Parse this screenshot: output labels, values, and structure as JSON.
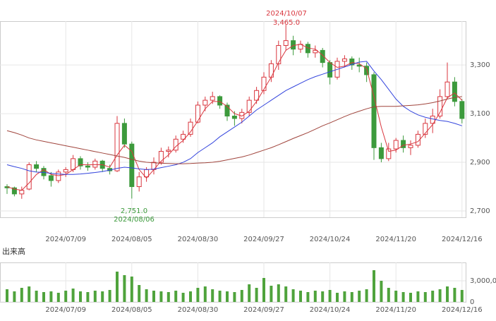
{
  "chart_data": {
    "type": "candlestick",
    "categories": [
      null,
      null,
      null,
      null,
      null,
      null,
      null,
      null,
      "2024/07/09",
      null,
      null,
      null,
      null,
      null,
      null,
      null,
      null,
      "2024/08/05",
      null,
      null,
      null,
      null,
      null,
      null,
      null,
      null,
      "2024/08/30",
      null,
      null,
      null,
      null,
      null,
      null,
      null,
      null,
      "2024/09/27",
      null,
      null,
      null,
      null,
      null,
      null,
      null,
      null,
      "2024/10/24",
      null,
      null,
      null,
      null,
      null,
      null,
      null,
      null,
      "2024/11/20",
      null,
      null,
      null,
      null,
      null,
      null,
      null,
      null,
      "2024/12/16"
    ],
    "candles": [
      [
        2800,
        2810,
        2770,
        2795
      ],
      [
        2795,
        2800,
        2760,
        2770
      ],
      [
        2770,
        2800,
        2750,
        2785
      ],
      [
        2790,
        2900,
        2785,
        2890
      ],
      [
        2890,
        2905,
        2860,
        2875
      ],
      [
        2875,
        2885,
        2830,
        2845
      ],
      [
        2845,
        2860,
        2800,
        2825
      ],
      [
        2825,
        2870,
        2815,
        2860
      ],
      [
        2860,
        2880,
        2840,
        2870
      ],
      [
        2870,
        2930,
        2860,
        2915
      ],
      [
        2915,
        2925,
        2870,
        2885
      ],
      [
        2885,
        2900,
        2865,
        2880
      ],
      [
        2880,
        2915,
        2870,
        2905
      ],
      [
        2905,
        2910,
        2860,
        2875
      ],
      [
        2875,
        2890,
        2850,
        2865
      ],
      [
        2865,
        3090,
        2860,
        3060
      ],
      [
        3060,
        3080,
        2960,
        2975
      ],
      [
        2975,
        2985,
        2751,
        2800
      ],
      [
        2800,
        2860,
        2780,
        2840
      ],
      [
        2840,
        2880,
        2820,
        2870
      ],
      [
        2870,
        2920,
        2850,
        2900
      ],
      [
        2900,
        2960,
        2890,
        2945
      ],
      [
        2945,
        2965,
        2920,
        2950
      ],
      [
        2950,
        3010,
        2940,
        2995
      ],
      [
        2995,
        3030,
        2980,
        3015
      ],
      [
        3015,
        3080,
        3005,
        3065
      ],
      [
        3065,
        3150,
        3060,
        3135
      ],
      [
        3135,
        3170,
        3110,
        3155
      ],
      [
        3155,
        3190,
        3140,
        3170
      ],
      [
        3170,
        3175,
        3120,
        3135
      ],
      [
        3135,
        3145,
        3070,
        3090
      ],
      [
        3090,
        3110,
        3050,
        3080
      ],
      [
        3080,
        3120,
        3060,
        3105
      ],
      [
        3105,
        3170,
        3090,
        3155
      ],
      [
        3155,
        3210,
        3140,
        3195
      ],
      [
        3195,
        3270,
        3180,
        3250
      ],
      [
        3250,
        3320,
        3230,
        3305
      ],
      [
        3305,
        3400,
        3280,
        3380
      ],
      [
        3380,
        3465,
        3360,
        3400
      ],
      [
        3400,
        3420,
        3340,
        3365
      ],
      [
        3365,
        3400,
        3350,
        3385
      ],
      [
        3385,
        3395,
        3330,
        3350
      ],
      [
        3350,
        3380,
        3330,
        3360
      ],
      [
        3360,
        3370,
        3290,
        3310
      ],
      [
        3310,
        3320,
        3220,
        3250
      ],
      [
        3250,
        3330,
        3240,
        3315
      ],
      [
        3315,
        3340,
        3290,
        3325
      ],
      [
        3325,
        3335,
        3280,
        3300
      ],
      [
        3300,
        3330,
        3270,
        3295
      ],
      [
        3295,
        3310,
        3230,
        3260
      ],
      [
        3260,
        3270,
        2910,
        2960
      ],
      [
        2960,
        2980,
        2900,
        2915
      ],
      [
        2915,
        2980,
        2905,
        2955
      ],
      [
        2955,
        3000,
        2940,
        2990
      ],
      [
        2990,
        3010,
        2940,
        2960
      ],
      [
        2960,
        2990,
        2930,
        2970
      ],
      [
        2970,
        3030,
        2960,
        3015
      ],
      [
        3015,
        3080,
        3000,
        3060
      ],
      [
        3060,
        3120,
        3020,
        3090
      ],
      [
        3090,
        3200,
        3080,
        3170
      ],
      [
        3170,
        3310,
        3160,
        3230
      ],
      [
        3230,
        3250,
        3130,
        3150
      ],
      [
        3150,
        3160,
        3060,
        3080
      ]
    ],
    "up_color": "#d9363e",
    "down_color": "#3c9a3c",
    "series": [
      {
        "color": "#d9363e",
        "values": [
          2800,
          2790,
          2785,
          2815,
          2850,
          2870,
          2850,
          2845,
          2850,
          2870,
          2890,
          2890,
          2890,
          2890,
          2880,
          2930,
          2970,
          2945,
          2870,
          2835,
          2870,
          2905,
          2930,
          2965,
          2990,
          3025,
          3070,
          3120,
          3150,
          3150,
          3130,
          3100,
          3090,
          3110,
          3150,
          3200,
          3250,
          3310,
          3360,
          3380,
          3385,
          3370,
          3365,
          3340,
          3310,
          3290,
          3295,
          3310,
          3305,
          3285,
          3170,
          3045,
          2945,
          2950,
          2970,
          2975,
          2985,
          3020,
          3055,
          3105,
          3165,
          3185,
          3155
        ]
      },
      {
        "color": "#3344dd",
        "values": [
          2890,
          2882,
          2875,
          2865,
          2860,
          2858,
          2855,
          2852,
          2850,
          2850,
          2852,
          2855,
          2858,
          2862,
          2868,
          2875,
          2880,
          2877,
          2873,
          2870,
          2872,
          2878,
          2884,
          2890,
          2900,
          2915,
          2940,
          2960,
          2980,
          3005,
          3025,
          3045,
          3065,
          3090,
          3115,
          3135,
          3155,
          3175,
          3195,
          3210,
          3225,
          3240,
          3252,
          3262,
          3272,
          3282,
          3292,
          3302,
          3312,
          3315,
          3275,
          3240,
          3200,
          3160,
          3130,
          3110,
          3095,
          3085,
          3078,
          3072,
          3068,
          3060,
          3050
        ]
      },
      {
        "color": "#a0443c",
        "values": [
          3030,
          3022,
          3012,
          3000,
          2992,
          2986,
          2980,
          2974,
          2968,
          2962,
          2956,
          2950,
          2944,
          2938,
          2932,
          2926,
          2920,
          2912,
          2905,
          2900,
          2898,
          2896,
          2895,
          2894,
          2894,
          2895,
          2897,
          2898,
          2900,
          2904,
          2910,
          2916,
          2922,
          2930,
          2940,
          2950,
          2960,
          2972,
          2985,
          2998,
          3010,
          3022,
          3036,
          3050,
          3062,
          3075,
          3088,
          3100,
          3110,
          3120,
          3128,
          3130,
          3130,
          3130,
          3132,
          3134,
          3136,
          3140,
          3145,
          3152,
          3160,
          3166,
          3170
        ]
      }
    ],
    "ylim": [
      2674,
      3480
    ],
    "yticks": [
      {
        "value": 2700,
        "label": "2,700"
      },
      {
        "value": 2900,
        "label": "2,900"
      },
      {
        "value": 3100,
        "label": "3,100"
      },
      {
        "value": 3300,
        "label": "3,300"
      }
    ],
    "grid": true,
    "annotations": [
      {
        "text": "2024/10/07",
        "color": "#d9363e"
      },
      {
        "text": "3,465.0",
        "color": "#d9363e"
      },
      {
        "text": "2,751.0",
        "color": "#3c9a3c"
      },
      {
        "text": "2024/08/06",
        "color": "#3c9a3c"
      }
    ],
    "volume": {
      "label": "出来高",
      "color": "#4fa33c",
      "values": [
        1800000,
        1500000,
        2000000,
        2200000,
        1600000,
        1400000,
        1500000,
        1300000,
        1600000,
        1900000,
        1500000,
        1400000,
        1600000,
        1500000,
        1700000,
        4300000,
        3800000,
        3600000,
        2400000,
        1800000,
        1600000,
        1500000,
        1400000,
        1600000,
        1300000,
        1500000,
        2000000,
        2200000,
        1800000,
        1600000,
        1500000,
        1400000,
        1700000,
        2500000,
        2000000,
        3400000,
        2300000,
        2500000,
        2200000,
        1800000,
        1600000,
        1400000,
        1600000,
        1500000,
        1700000,
        1300000,
        1500000,
        1400000,
        1600000,
        1800000,
        4500000,
        3000000,
        2000000,
        1600000,
        1400000,
        1300000,
        1500000,
        1400000,
        1600000,
        1800000,
        2200000,
        2000000,
        1700000
      ],
      "ylim": [
        0,
        5600000
      ],
      "yticks": [
        0,
        {
          "value": 3000000,
          "label": "3,000,000"
        }
      ]
    }
  }
}
